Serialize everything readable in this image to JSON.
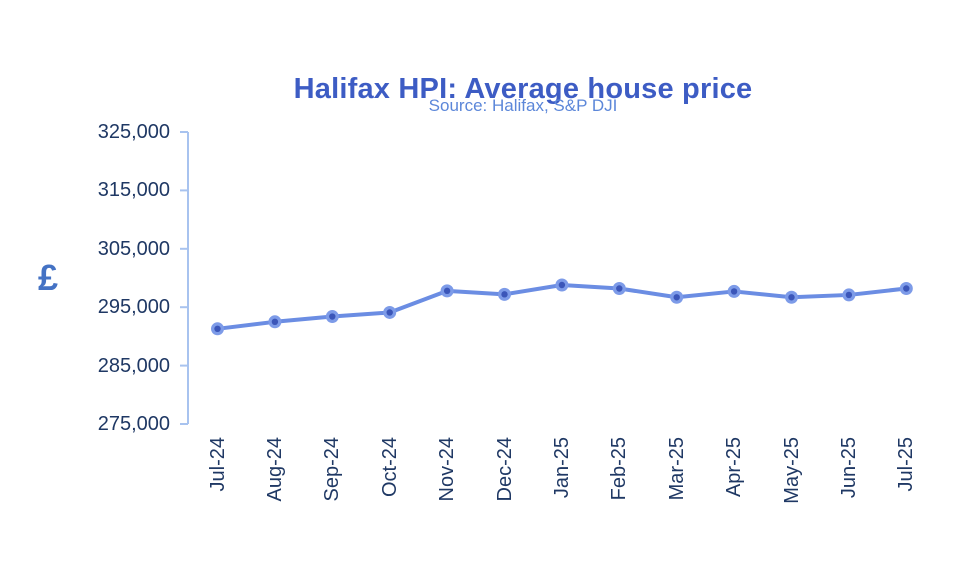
{
  "chart_data": {
    "type": "line",
    "title": "Halifax HPI: Average house price",
    "subtitle": "Source: Halifax, S&P DJI",
    "ylabel": "£",
    "xlabel": "",
    "categories": [
      "Jul-24",
      "Aug-24",
      "Sep-24",
      "Oct-24",
      "Nov-24",
      "Dec-24",
      "Jan-25",
      "Feb-25",
      "Mar-25",
      "Apr-25",
      "May-25",
      "Jun-25",
      "Jul-25"
    ],
    "series": [
      {
        "name": "Average house price (£)",
        "values": [
          291300,
          292500,
          293400,
          294100,
          297800,
          297200,
          298800,
          298200,
          296700,
          297700,
          296700,
          297100,
          298200
        ]
      }
    ],
    "ylim": [
      275000,
      325000
    ],
    "ytick_step": 10000,
    "ytick_labels": [
      "325,000",
      "315,000",
      "305,000",
      "295,000",
      "285,000",
      "275,000"
    ],
    "grid": false,
    "legend_position": "none",
    "marker_style": "circle",
    "colors": {
      "title": "#3D5CC4",
      "subtitle": "#5C87D9",
      "ylabel": "#4472C4",
      "tick_text": "#1F3864",
      "axis_line": "#A8C3EF",
      "series_line": "#6B8DE3",
      "marker_ring": "#7D9BE8",
      "marker_core": "#3B56B9"
    }
  }
}
